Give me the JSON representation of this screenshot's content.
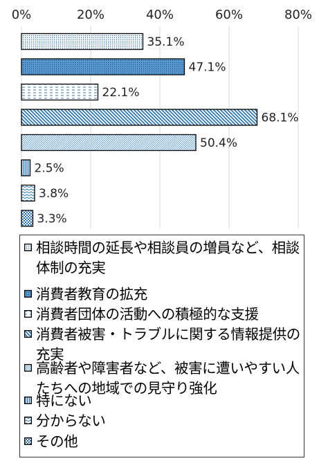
{
  "chart_data": {
    "type": "bar",
    "orientation": "horizontal",
    "x_ticks": [
      "0%",
      "20%",
      "40%",
      "60%",
      "80%"
    ],
    "xlim": [
      0,
      80
    ],
    "grid": true,
    "legend_placement": "bottom",
    "series": [
      {
        "name": "相談時間の延長や相談員の増員など、相談体制の充実",
        "value": 35.1,
        "label": "35.1%",
        "pattern": "dots"
      },
      {
        "name": "消費者教育の拡充",
        "value": 47.1,
        "label": "47.1%",
        "pattern": "dense-blue"
      },
      {
        "name": "消費者団体の活動への積極的な支援",
        "value": 22.1,
        "label": "22.1%",
        "pattern": "dashes"
      },
      {
        "name": "消費者被害・トラブルに関する情報提供の充実",
        "value": 68.1,
        "label": "68.1%",
        "pattern": "diagonal"
      },
      {
        "name": "高齢者や障害者など、被害に遭いやすい人たちへの地域での見守り強化",
        "value": 50.4,
        "label": "50.4%",
        "pattern": "fine-diagonal"
      },
      {
        "name": "特にない",
        "value": 2.5,
        "label": "2.5%",
        "pattern": "vertical"
      },
      {
        "name": "分からない",
        "value": 3.8,
        "label": "3.8%",
        "pattern": "zigzag"
      },
      {
        "name": "その他",
        "value": 3.3,
        "label": "3.3%",
        "pattern": "checker"
      }
    ],
    "colors": {
      "bar_stroke": "#000000",
      "pattern_blue": "#2e75b6",
      "pattern_blue_light": "#5b9bd5",
      "grid": "#d9d9d9"
    }
  }
}
